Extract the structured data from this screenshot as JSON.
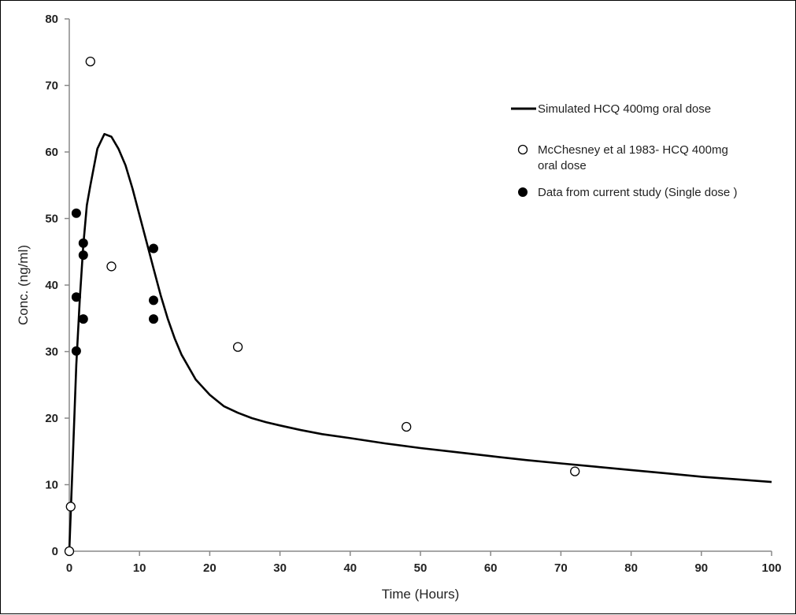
{
  "chart_data": {
    "type": "scatter",
    "xlabel": "Time (Hours)",
    "ylabel": "Conc. (ng/ml)",
    "xlim": [
      0,
      100
    ],
    "ylim": [
      0,
      80
    ],
    "xticks": [
      0,
      10,
      20,
      30,
      40,
      50,
      60,
      70,
      80,
      90,
      100
    ],
    "yticks": [
      0,
      10,
      20,
      30,
      40,
      50,
      60,
      70,
      80
    ],
    "grid": false,
    "legend_position": "right",
    "series": [
      {
        "name": "Simulated HCQ 400mg oral dose",
        "kind": "line",
        "color": "#000000",
        "x": [
          0,
          0.5,
          1,
          1.5,
          2,
          2.5,
          3,
          4,
          5,
          6,
          7,
          8,
          9,
          10,
          11,
          12,
          13,
          14,
          15,
          16,
          18,
          20,
          22,
          24,
          26,
          28,
          30,
          33,
          36,
          40,
          45,
          50,
          55,
          60,
          65,
          70,
          75,
          80,
          85,
          90,
          95,
          100
        ],
        "y": [
          0,
          14,
          28,
          38,
          46,
          52,
          55,
          60.5,
          62.7,
          62.3,
          60.5,
          58,
          54.5,
          50.5,
          46.5,
          42.5,
          38.5,
          35,
          32,
          29.5,
          25.8,
          23.5,
          21.8,
          20.8,
          20,
          19.4,
          18.9,
          18.2,
          17.6,
          17,
          16.2,
          15.5,
          14.9,
          14.3,
          13.7,
          13.2,
          12.7,
          12.2,
          11.7,
          11.2,
          10.8,
          10.4
        ]
      },
      {
        "name": "McChesney et al 1983- HCQ 400mg oral dose",
        "kind": "scatter",
        "marker": "open-circle",
        "x": [
          0,
          0.2,
          3,
          6,
          24,
          48,
          72
        ],
        "y": [
          0,
          6.7,
          73.6,
          42.8,
          30.7,
          18.7,
          12
        ]
      },
      {
        "name": "Data from current study (Single dose )",
        "kind": "scatter",
        "marker": "filled-circle",
        "x": [
          1,
          1,
          1,
          2,
          2,
          2,
          12,
          12,
          12
        ],
        "y": [
          50.8,
          38.2,
          30.1,
          46.3,
          44.5,
          34.9,
          45.5,
          37.7,
          34.9
        ]
      }
    ]
  }
}
